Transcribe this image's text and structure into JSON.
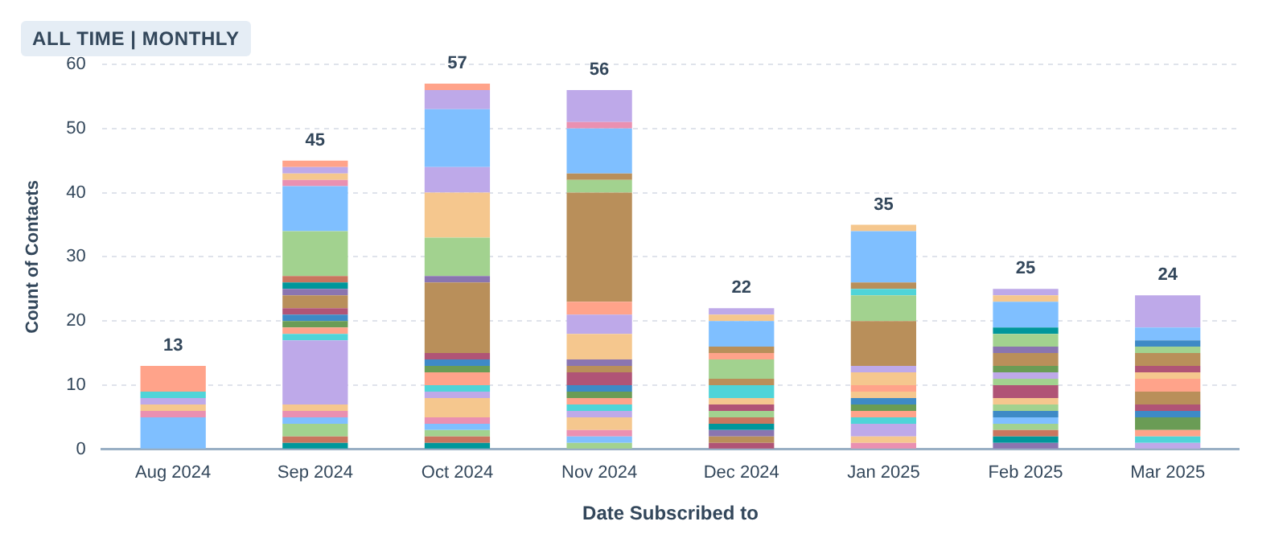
{
  "chart_data": {
    "type": "bar",
    "stacked": true,
    "title": "ALL TIME | MONTHLY",
    "xlabel": "Date Subscribed to",
    "ylabel": "Count of Contacts",
    "categories": [
      "Aug 2024",
      "Sep 2024",
      "Oct 2024",
      "Nov 2024",
      "Dec 2024",
      "Jan 2025",
      "Feb 2025",
      "Mar 2025"
    ],
    "ylim": [
      0,
      60
    ],
    "yticks": [
      0,
      10,
      20,
      30,
      40,
      50,
      60
    ],
    "grid": "y",
    "legend": false,
    "totals": [
      "13",
      "45",
      "57",
      "56",
      "22",
      "35",
      "25",
      "24"
    ],
    "series": [
      {
        "values": [
          5,
          1,
          1,
          1,
          1,
          1,
          1,
          1
        ],
        "colors": [
          "#7fbfff",
          "#00979b",
          "#00979b",
          "#a2d28f",
          "#b05476",
          "#ea90b1",
          "#8a75b0",
          "#bea9e9"
        ]
      },
      {
        "values": [
          1,
          1,
          1,
          1,
          1,
          1,
          1,
          1
        ],
        "colors": [
          "#ea90b1",
          "#c9765f",
          "#c9765f",
          "#7fbfff",
          "#b98f5a",
          "#f5c78e",
          "#00979b",
          "#4fd4d8"
        ]
      },
      {
        "values": [
          1,
          2,
          1,
          1,
          1,
          2,
          1,
          1
        ],
        "colors": [
          "#f5c78e",
          "#a2d28f",
          "#a2d28f",
          "#ea90b1",
          "#8a75b0",
          "#bea9e9",
          "#c9765f",
          "#ffa38a"
        ]
      },
      {
        "values": [
          1,
          1,
          1,
          2,
          1,
          1,
          1,
          2
        ],
        "colors": [
          "#bea9e9",
          "#7fbfff",
          "#7fbfff",
          "#f5c78e",
          "#00979b",
          "#4fd4d8",
          "#a2d28f",
          "#6a9c55"
        ]
      },
      {
        "values": [
          1,
          1,
          1,
          1,
          1,
          1,
          1,
          1
        ],
        "colors": [
          "#4fd4d8",
          "#ea90b1",
          "#ea90b1",
          "#bea9e9",
          "#c9765f",
          "#ffa38a",
          "#7fbfff",
          "#3e8ac6"
        ]
      },
      {
        "values": [
          4,
          1,
          3,
          1,
          1,
          1,
          1,
          1
        ],
        "colors": [
          "#ffa38a",
          "#f5c78e",
          "#f5c78e",
          "#4fd4d8",
          "#a2d28f",
          "#6a9c55",
          "#3e8ac6",
          "#b05476"
        ]
      },
      {
        "values": [
          null,
          10,
          1,
          1,
          1,
          1,
          1,
          2
        ],
        "colors": [
          null,
          "#bea9e9",
          "#bea9e9",
          "#ffa38a",
          "#b05476",
          "#3e8ac6",
          "#a2d28f",
          "#b98f5a"
        ]
      },
      {
        "values": [
          null,
          1,
          1,
          1,
          1,
          1,
          1,
          2
        ],
        "colors": [
          null,
          "#4fd4d8",
          "#4fd4d8",
          "#6a9c55",
          "#f5c78e",
          "#f5c78e",
          "#f5c78e",
          "#ffa38a"
        ]
      },
      {
        "values": [
          null,
          1,
          2,
          1,
          2,
          1,
          2,
          1
        ],
        "colors": [
          null,
          "#ffa38a",
          "#ffa38a",
          "#3e8ac6",
          "#4fd4d8",
          "#ffa38a",
          "#b05476",
          "#f5c78e"
        ]
      },
      {
        "values": [
          null,
          1,
          1,
          2,
          1,
          2,
          1,
          1
        ],
        "colors": [
          null,
          "#6a9c55",
          "#6a9c55",
          "#b05476",
          "#b98f5a",
          "#f5c78e",
          "#a2d28f",
          "#b05476"
        ]
      },
      {
        "values": [
          null,
          1,
          1,
          1,
          3,
          1,
          1,
          2
        ],
        "colors": [
          null,
          "#3e8ac6",
          "#3e8ac6",
          "#b98f5a",
          "#a2d28f",
          "#bea9e9",
          "#bea9e9",
          "#b98f5a"
        ]
      },
      {
        "values": [
          null,
          1,
          1,
          1,
          1,
          7,
          1,
          1
        ],
        "colors": [
          null,
          "#b05476",
          "#b05476",
          "#8a75b0",
          "#ffa38a",
          "#b98f5a",
          "#6a9c55",
          "#a2d28f"
        ]
      },
      {
        "values": [
          null,
          2,
          11,
          4,
          1,
          4,
          2,
          1
        ],
        "colors": [
          null,
          "#b98f5a",
          "#b98f5a",
          "#f5c78e",
          "#b98f5a",
          "#a2d28f",
          "#b98f5a",
          "#3e8ac6"
        ]
      },
      {
        "values": [
          null,
          1,
          1,
          3,
          4,
          1,
          1,
          2
        ],
        "colors": [
          null,
          "#8a75b0",
          "#8a75b0",
          "#bea9e9",
          "#7fbfff",
          "#4fd4d8",
          "#8a75b0",
          "#7fbfff"
        ]
      },
      {
        "values": [
          null,
          1,
          6,
          2,
          1,
          1,
          2,
          5
        ],
        "colors": [
          null,
          "#00979b",
          "#a2d28f",
          "#ffa38a",
          "#f5c78e",
          "#b98f5a",
          "#a2d28f",
          "#bea9e9"
        ]
      },
      {
        "values": [
          null,
          1,
          7,
          17,
          1,
          8,
          1,
          null
        ],
        "colors": [
          null,
          "#c9765f",
          "#f5c78e",
          "#b98f5a",
          "#bea9e9",
          "#7fbfff",
          "#00979b",
          null
        ]
      },
      {
        "values": [
          null,
          7,
          4,
          2,
          null,
          1,
          4,
          null
        ],
        "colors": [
          null,
          "#a2d28f",
          "#bea9e9",
          "#a2d28f",
          null,
          "#f5c78e",
          "#7fbfff",
          null
        ]
      },
      {
        "values": [
          null,
          7,
          9,
          1,
          null,
          null,
          1,
          null
        ],
        "colors": [
          null,
          "#7fbfff",
          "#7fbfff",
          "#b98f5a",
          null,
          null,
          "#f5c78e",
          null
        ]
      },
      {
        "values": [
          null,
          1,
          3,
          7,
          null,
          null,
          1,
          null
        ],
        "colors": [
          null,
          "#ea90b1",
          "#bea9e9",
          "#7fbfff",
          null,
          null,
          "#bea9e9",
          null
        ]
      },
      {
        "values": [
          null,
          1,
          1,
          1,
          null,
          null,
          null,
          null
        ],
        "colors": [
          null,
          "#f5c78e",
          "#ffa38a",
          "#ea90b1",
          null,
          null,
          null,
          null
        ]
      },
      {
        "values": [
          null,
          1,
          null,
          5,
          null,
          null,
          null,
          null
        ],
        "colors": [
          null,
          "#bea9e9",
          null,
          "#bea9e9",
          null,
          null,
          null,
          null
        ]
      },
      {
        "values": [
          null,
          1,
          null,
          null,
          null,
          null,
          null,
          null
        ],
        "colors": [
          null,
          "#ffa38a",
          null,
          null,
          null,
          null,
          null,
          null
        ]
      }
    ]
  }
}
